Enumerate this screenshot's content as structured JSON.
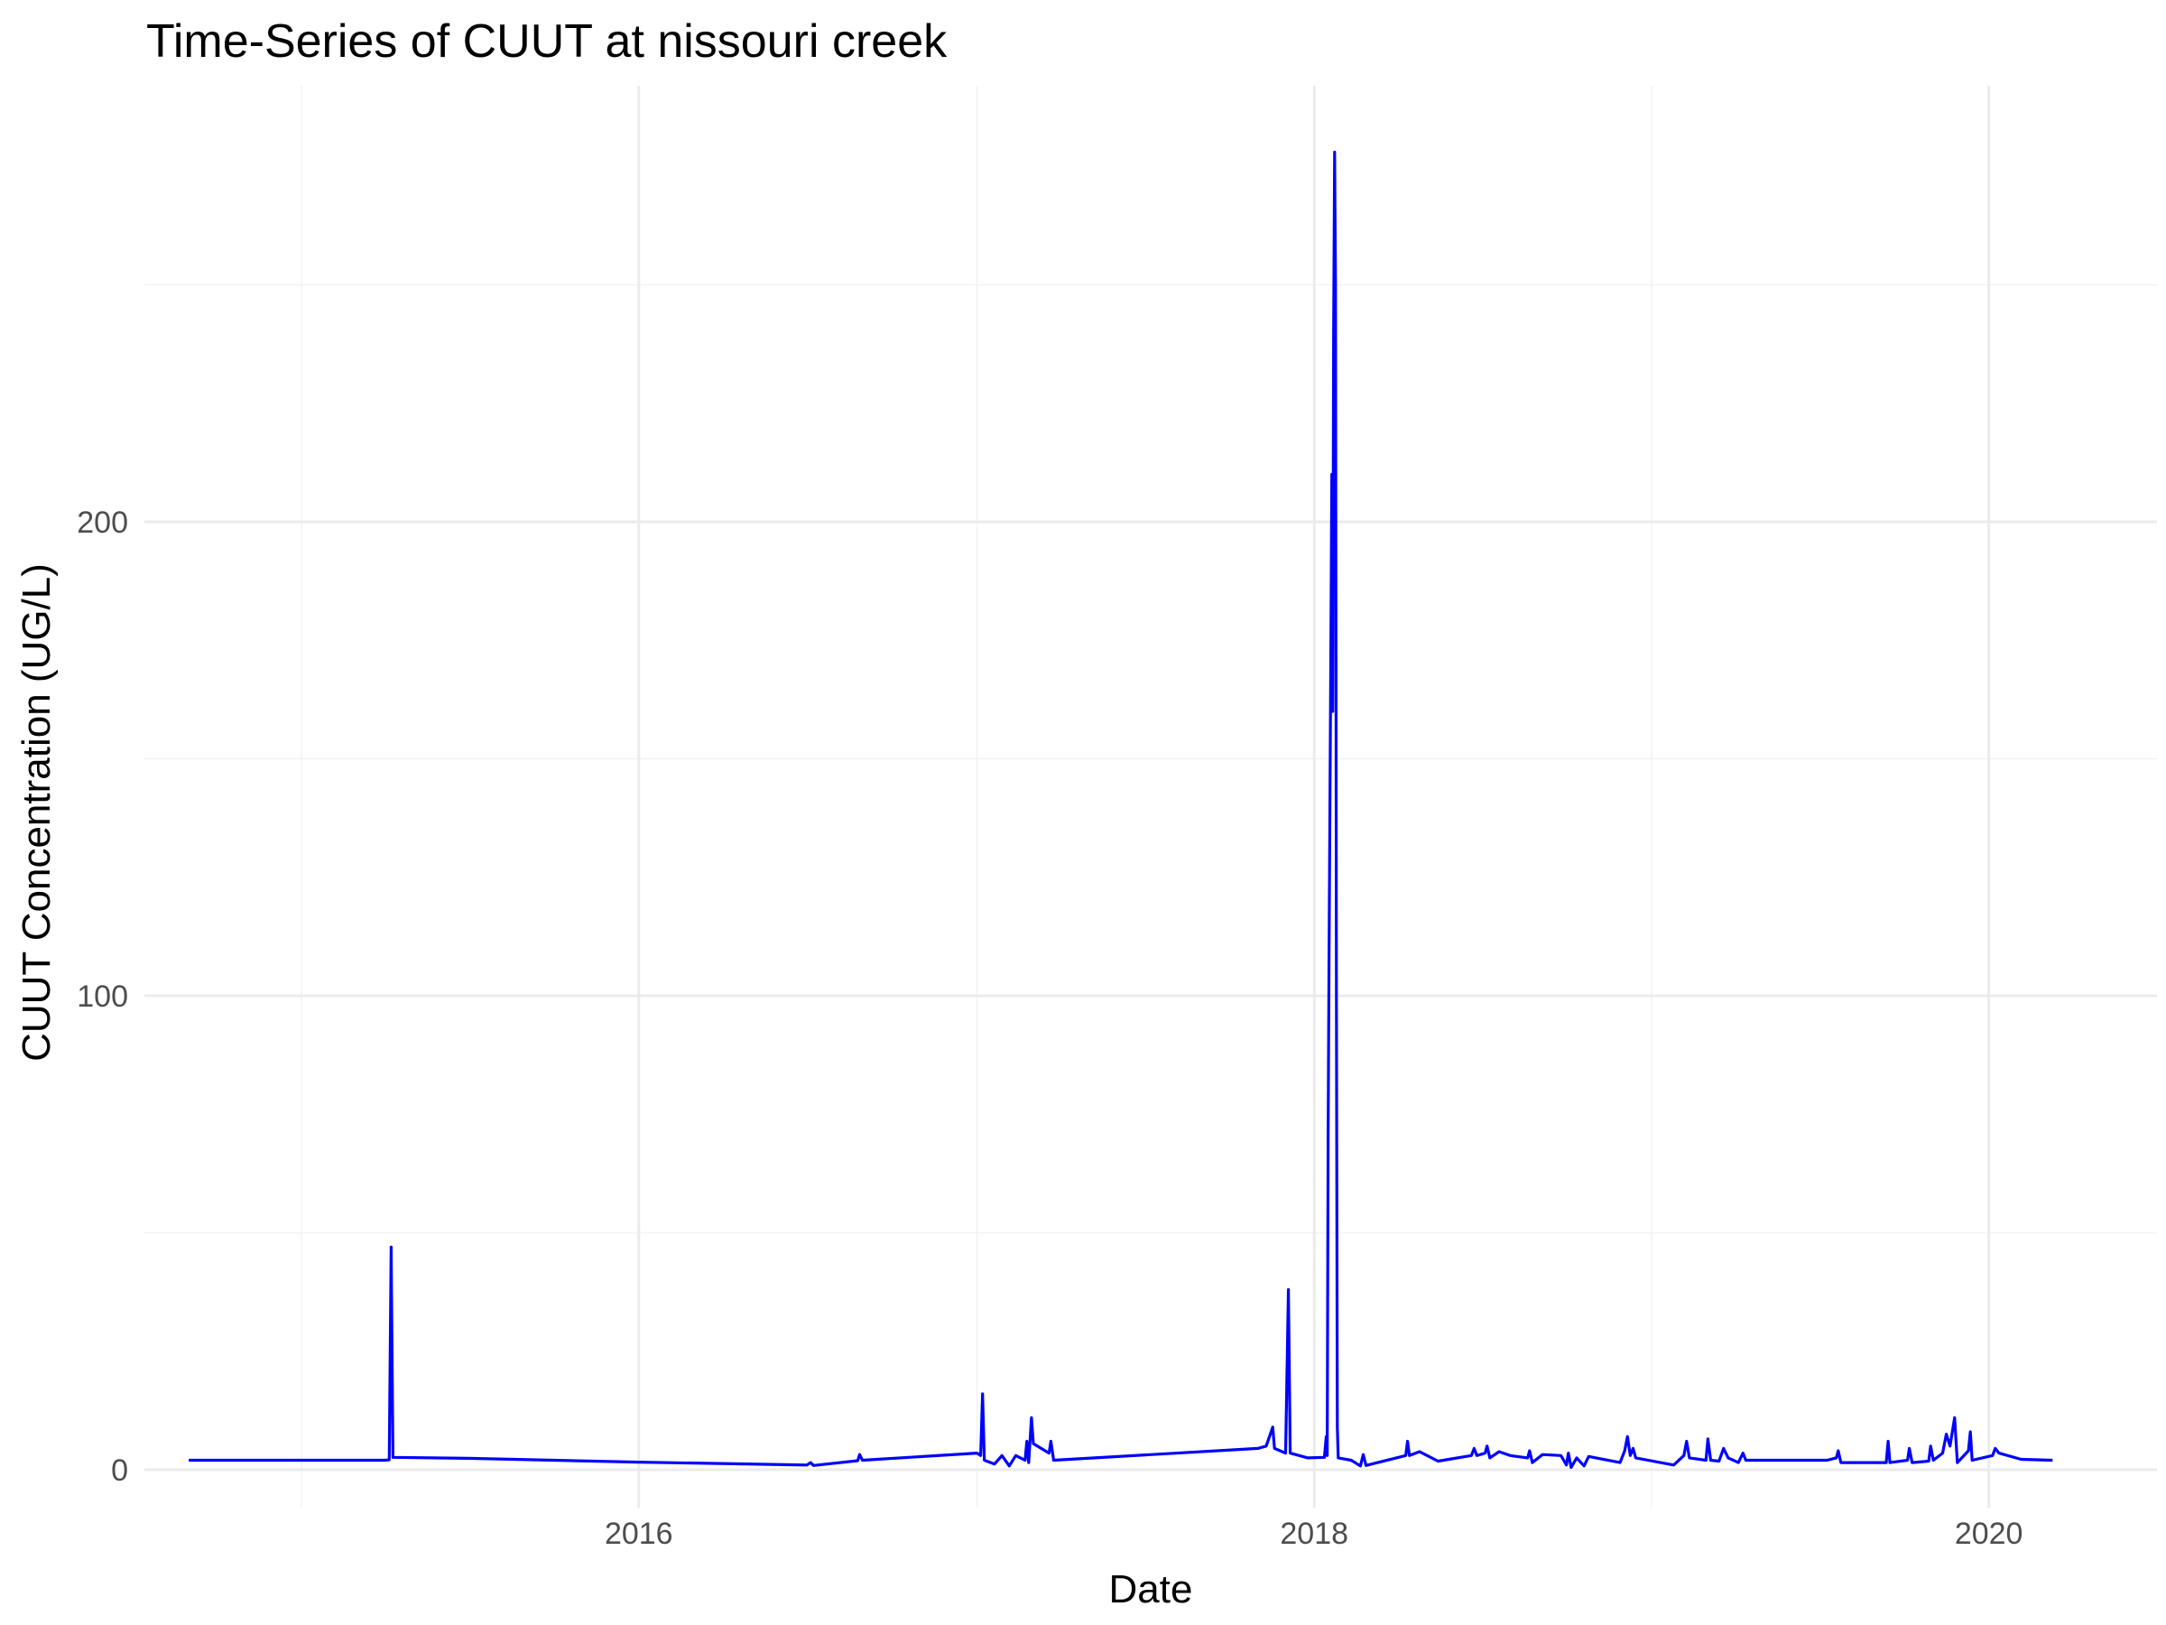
{
  "chart_data": {
    "type": "line",
    "title": "Time-Series of CUUT at nissouri creek",
    "xlabel": "Date",
    "ylabel": "CUUT Concentration (UG/L)",
    "x_ticks": [
      "2016",
      "2018",
      "2020"
    ],
    "y_ticks": [
      0,
      100,
      200
    ],
    "xlim": [
      "2014-07-15",
      "2020-07-01"
    ],
    "ylim": [
      -8,
      292
    ],
    "grid": true,
    "series": [
      {
        "color": "#0000ff",
        "points": [
          [
            "2014-09-01",
            2.0
          ],
          [
            "2015-04-01",
            2.0
          ],
          [
            "2015-04-06",
            2.1
          ],
          [
            "2015-04-08",
            47.0
          ],
          [
            "2015-04-10",
            2.6
          ],
          [
            "2015-07-01",
            2.4
          ],
          [
            "2016-01-01",
            1.6
          ],
          [
            "2016-07-01",
            1.0
          ],
          [
            "2016-07-05",
            1.5
          ],
          [
            "2016-07-08",
            0.9
          ],
          [
            "2016-08-25",
            1.9
          ],
          [
            "2016-08-27",
            3.2
          ],
          [
            "2016-08-30",
            2.0
          ],
          [
            "2017-01-01",
            3.5
          ],
          [
            "2017-01-05",
            3.0
          ],
          [
            "2017-01-07",
            16.0
          ],
          [
            "2017-01-09",
            2.0
          ],
          [
            "2017-01-20",
            1.2
          ],
          [
            "2017-01-28",
            3.0
          ],
          [
            "2017-02-05",
            0.8
          ],
          [
            "2017-02-12",
            3.0
          ],
          [
            "2017-02-22",
            2.0
          ],
          [
            "2017-02-24",
            6.0
          ],
          [
            "2017-02-26",
            1.5
          ],
          [
            "2017-03-01",
            11.0
          ],
          [
            "2017-03-03",
            5.5
          ],
          [
            "2017-03-20",
            3.5
          ],
          [
            "2017-03-22",
            6.0
          ],
          [
            "2017-03-25",
            2.0
          ],
          [
            "2017-11-01",
            4.5
          ],
          [
            "2017-11-10",
            5.0
          ],
          [
            "2017-11-17",
            9.0
          ],
          [
            "2017-11-19",
            4.5
          ],
          [
            "2017-12-01",
            3.5
          ],
          [
            "2017-12-04",
            38.0
          ],
          [
            "2017-12-06",
            3.5
          ],
          [
            "2017-12-25",
            2.5
          ],
          [
            "2018-01-12",
            2.6
          ],
          [
            "2018-01-14",
            7.0
          ],
          [
            "2018-01-15",
            3.0
          ],
          [
            "2018-01-16",
            70.0
          ],
          [
            "2018-01-17",
            107.0
          ],
          [
            "2018-01-18",
            140.0
          ],
          [
            "2018-01-19",
            175.0
          ],
          [
            "2018-01-20",
            210.0
          ],
          [
            "2018-01-21",
            160.0
          ],
          [
            "2018-01-22",
            240.0
          ],
          [
            "2018-01-23",
            278.0
          ],
          [
            "2018-01-24",
            250.0
          ],
          [
            "2018-01-25",
            100.0
          ],
          [
            "2018-01-26",
            9.0
          ],
          [
            "2018-01-27",
            2.5
          ],
          [
            "2018-02-10",
            2.0
          ],
          [
            "2018-02-20",
            0.8
          ],
          [
            "2018-02-23",
            3.2
          ],
          [
            "2018-02-26",
            0.9
          ],
          [
            "2018-04-10",
            3.0
          ],
          [
            "2018-04-12",
            6.0
          ],
          [
            "2018-04-14",
            3.0
          ],
          [
            "2018-04-25",
            3.8
          ],
          [
            "2018-05-01",
            3.2
          ],
          [
            "2018-05-15",
            1.8
          ],
          [
            "2018-06-20",
            3.0
          ],
          [
            "2018-06-23",
            4.5
          ],
          [
            "2018-06-26",
            3.0
          ],
          [
            "2018-07-05",
            3.5
          ],
          [
            "2018-07-07",
            5.0
          ],
          [
            "2018-07-10",
            2.5
          ],
          [
            "2018-07-20",
            3.8
          ],
          [
            "2018-08-01",
            3.0
          ],
          [
            "2018-08-20",
            2.5
          ],
          [
            "2018-08-22",
            4.0
          ],
          [
            "2018-08-25",
            1.5
          ],
          [
            "2018-09-05",
            3.2
          ],
          [
            "2018-09-25",
            3.0
          ],
          [
            "2018-10-01",
            1.0
          ],
          [
            "2018-10-03",
            3.5
          ],
          [
            "2018-10-06",
            0.5
          ],
          [
            "2018-10-12",
            2.5
          ],
          [
            "2018-10-20",
            0.8
          ],
          [
            "2018-10-25",
            2.8
          ],
          [
            "2018-11-28",
            1.5
          ],
          [
            "2018-12-03",
            4.0
          ],
          [
            "2018-12-06",
            7.0
          ],
          [
            "2018-12-09",
            3.0
          ],
          [
            "2018-12-12",
            4.5
          ],
          [
            "2018-12-15",
            2.5
          ],
          [
            "2019-01-25",
            1.0
          ],
          [
            "2019-02-05",
            3.0
          ],
          [
            "2019-02-08",
            6.0
          ],
          [
            "2019-02-11",
            2.5
          ],
          [
            "2019-03-01",
            2.0
          ],
          [
            "2019-03-03",
            6.5
          ],
          [
            "2019-03-06",
            2.0
          ],
          [
            "2019-03-15",
            1.8
          ],
          [
            "2019-03-20",
            4.5
          ],
          [
            "2019-03-25",
            2.5
          ],
          [
            "2019-04-05",
            1.5
          ],
          [
            "2019-04-10",
            3.5
          ],
          [
            "2019-04-13",
            2.0
          ],
          [
            "2019-07-10",
            2.0
          ],
          [
            "2019-07-20",
            2.5
          ],
          [
            "2019-07-22",
            4.0
          ],
          [
            "2019-07-25",
            1.5
          ],
          [
            "2019-08-25",
            1.5
          ],
          [
            "2019-09-12",
            1.5
          ],
          [
            "2019-09-14",
            6.0
          ],
          [
            "2019-09-16",
            1.5
          ],
          [
            "2019-10-05",
            2.0
          ],
          [
            "2019-10-07",
            4.5
          ],
          [
            "2019-10-10",
            1.5
          ],
          [
            "2019-10-28",
            1.8
          ],
          [
            "2019-10-30",
            5.0
          ],
          [
            "2019-11-02",
            2.0
          ],
          [
            "2019-11-12",
            3.5
          ],
          [
            "2019-11-16",
            7.5
          ],
          [
            "2019-11-20",
            5.0
          ],
          [
            "2019-11-25",
            11.0
          ],
          [
            "2019-11-28",
            1.5
          ],
          [
            "2019-12-10",
            4.0
          ],
          [
            "2019-12-12",
            8.0
          ],
          [
            "2019-12-14",
            2.0
          ],
          [
            "2020-01-05",
            3.0
          ],
          [
            "2020-01-08",
            4.5
          ],
          [
            "2020-01-12",
            3.5
          ],
          [
            "2020-02-05",
            2.2
          ],
          [
            "2020-03-10",
            2.0
          ]
        ]
      }
    ]
  }
}
